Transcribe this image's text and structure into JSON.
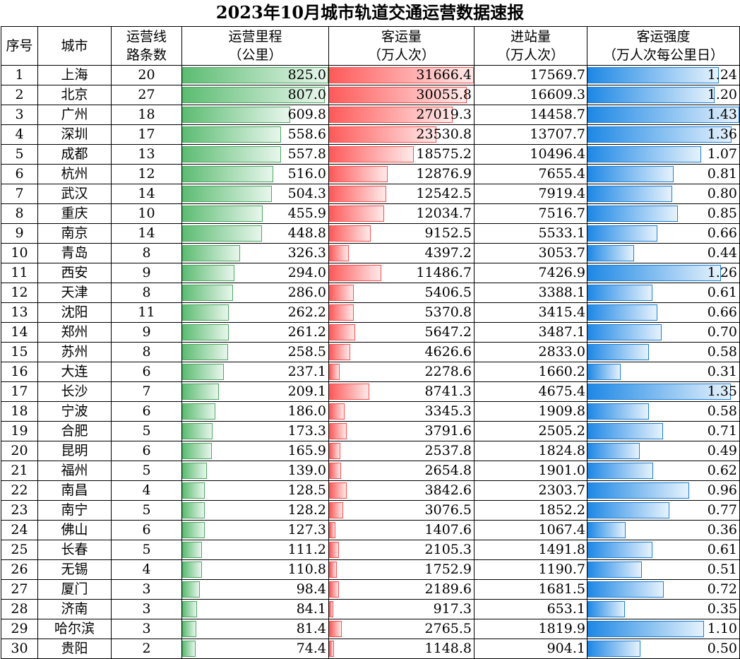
{
  "title": "2023年10月城市轨道交通运营数据速报",
  "headers": {
    "seq": "序号",
    "city": "城市",
    "lines": [
      "运营线",
      "路条数"
    ],
    "mileage": [
      "运营里程",
      "（公里）"
    ],
    "ridership": [
      "客运量",
      "（万人次）"
    ],
    "entries": [
      "进站量",
      "（万人次）"
    ],
    "intensity": [
      "客运强度",
      "（万人次每公里日）"
    ]
  },
  "colors": {
    "mileage_bar": "#5cbc72",
    "ridership_bar": "#ff5a5a",
    "intensity_bar": "#1e88e5"
  },
  "bar_max": {
    "mileage": 825.0,
    "ridership": 31666.4,
    "intensity": 1.43
  },
  "rows": [
    {
      "seq": "1",
      "city": "上海",
      "lines": "20",
      "mileage": "825.0",
      "ridership": "31666.4",
      "entries": "17569.7",
      "intensity": "1.24"
    },
    {
      "seq": "2",
      "city": "北京",
      "lines": "27",
      "mileage": "807.0",
      "ridership": "30055.8",
      "entries": "16609.3",
      "intensity": "1.20"
    },
    {
      "seq": "3",
      "city": "广州",
      "lines": "18",
      "mileage": "609.8",
      "ridership": "27019.3",
      "entries": "14458.7",
      "intensity": "1.43"
    },
    {
      "seq": "4",
      "city": "深圳",
      "lines": "17",
      "mileage": "558.6",
      "ridership": "23530.8",
      "entries": "13707.7",
      "intensity": "1.36"
    },
    {
      "seq": "5",
      "city": "成都",
      "lines": "13",
      "mileage": "557.8",
      "ridership": "18575.2",
      "entries": "10496.4",
      "intensity": "1.07"
    },
    {
      "seq": "6",
      "city": "杭州",
      "lines": "12",
      "mileage": "516.0",
      "ridership": "12876.9",
      "entries": "7655.4",
      "intensity": "0.81"
    },
    {
      "seq": "7",
      "city": "武汉",
      "lines": "14",
      "mileage": "504.3",
      "ridership": "12542.5",
      "entries": "7919.4",
      "intensity": "0.80"
    },
    {
      "seq": "8",
      "city": "重庆",
      "lines": "10",
      "mileage": "455.9",
      "ridership": "12034.7",
      "entries": "7516.7",
      "intensity": "0.85"
    },
    {
      "seq": "9",
      "city": "南京",
      "lines": "14",
      "mileage": "448.8",
      "ridership": "9152.5",
      "entries": "5533.1",
      "intensity": "0.66"
    },
    {
      "seq": "10",
      "city": "青岛",
      "lines": "8",
      "mileage": "326.3",
      "ridership": "4397.2",
      "entries": "3053.7",
      "intensity": "0.44"
    },
    {
      "seq": "11",
      "city": "西安",
      "lines": "9",
      "mileage": "294.0",
      "ridership": "11486.7",
      "entries": "7426.9",
      "intensity": "1.26"
    },
    {
      "seq": "12",
      "city": "天津",
      "lines": "8",
      "mileage": "286.0",
      "ridership": "5406.5",
      "entries": "3388.1",
      "intensity": "0.61"
    },
    {
      "seq": "13",
      "city": "沈阳",
      "lines": "11",
      "mileage": "262.2",
      "ridership": "5370.8",
      "entries": "3415.4",
      "intensity": "0.66"
    },
    {
      "seq": "14",
      "city": "郑州",
      "lines": "9",
      "mileage": "261.2",
      "ridership": "5647.2",
      "entries": "3487.1",
      "intensity": "0.70"
    },
    {
      "seq": "15",
      "city": "苏州",
      "lines": "8",
      "mileage": "258.5",
      "ridership": "4626.6",
      "entries": "2833.0",
      "intensity": "0.58"
    },
    {
      "seq": "16",
      "city": "大连",
      "lines": "6",
      "mileage": "237.1",
      "ridership": "2278.6",
      "entries": "1660.2",
      "intensity": "0.31"
    },
    {
      "seq": "17",
      "city": "长沙",
      "lines": "7",
      "mileage": "209.1",
      "ridership": "8741.3",
      "entries": "4675.4",
      "intensity": "1.35"
    },
    {
      "seq": "18",
      "city": "宁波",
      "lines": "6",
      "mileage": "186.0",
      "ridership": "3345.3",
      "entries": "1909.8",
      "intensity": "0.58"
    },
    {
      "seq": "19",
      "city": "合肥",
      "lines": "5",
      "mileage": "173.3",
      "ridership": "3791.6",
      "entries": "2505.2",
      "intensity": "0.71"
    },
    {
      "seq": "20",
      "city": "昆明",
      "lines": "6",
      "mileage": "165.9",
      "ridership": "2537.8",
      "entries": "1824.8",
      "intensity": "0.49"
    },
    {
      "seq": "21",
      "city": "福州",
      "lines": "5",
      "mileage": "139.0",
      "ridership": "2654.8",
      "entries": "1901.0",
      "intensity": "0.62"
    },
    {
      "seq": "22",
      "city": "南昌",
      "lines": "4",
      "mileage": "128.5",
      "ridership": "3842.6",
      "entries": "2303.7",
      "intensity": "0.96"
    },
    {
      "seq": "23",
      "city": "南宁",
      "lines": "5",
      "mileage": "128.2",
      "ridership": "3076.5",
      "entries": "1852.2",
      "intensity": "0.77"
    },
    {
      "seq": "24",
      "city": "佛山",
      "lines": "6",
      "mileage": "127.3",
      "ridership": "1407.6",
      "entries": "1067.4",
      "intensity": "0.36"
    },
    {
      "seq": "25",
      "city": "长春",
      "lines": "5",
      "mileage": "111.2",
      "ridership": "2105.3",
      "entries": "1491.8",
      "intensity": "0.61"
    },
    {
      "seq": "26",
      "city": "无锡",
      "lines": "4",
      "mileage": "110.8",
      "ridership": "1752.9",
      "entries": "1190.7",
      "intensity": "0.51"
    },
    {
      "seq": "27",
      "city": "厦门",
      "lines": "3",
      "mileage": "98.4",
      "ridership": "2189.6",
      "entries": "1681.5",
      "intensity": "0.72"
    },
    {
      "seq": "28",
      "city": "济南",
      "lines": "3",
      "mileage": "84.1",
      "ridership": "917.3",
      "entries": "653.1",
      "intensity": "0.35"
    },
    {
      "seq": "29",
      "city": "哈尔滨",
      "lines": "3",
      "mileage": "81.4",
      "ridership": "2765.5",
      "entries": "1819.9",
      "intensity": "1.10"
    },
    {
      "seq": "30",
      "city": "贵阳",
      "lines": "2",
      "mileage": "74.4",
      "ridership": "1148.8",
      "entries": "904.1",
      "intensity": "0.50"
    }
  ]
}
